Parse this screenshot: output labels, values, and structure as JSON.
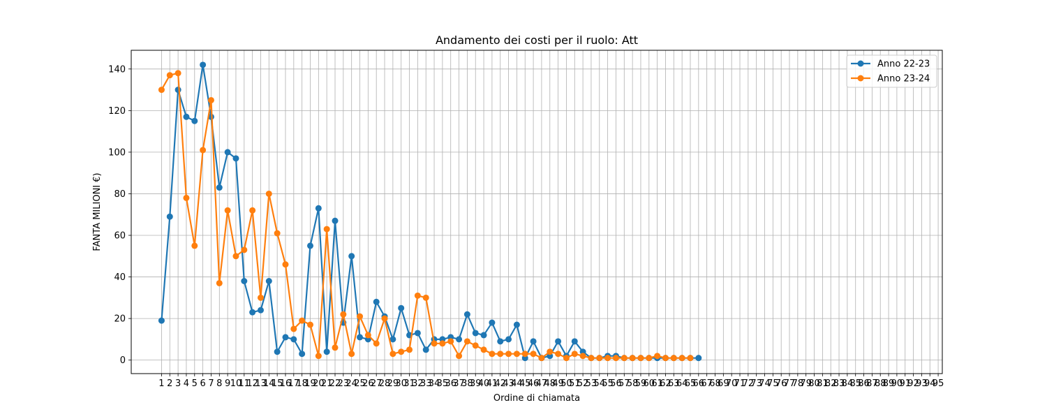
{
  "chart_data": {
    "type": "line",
    "title": "Andamento dei costi per il ruolo: Att",
    "xlabel": "Ordine di chiamata",
    "ylabel": "FANTA MILIONI €)",
    "xlim": [
      -2.67,
      95.5
    ],
    "ylim": [
      -6.5,
      149
    ],
    "xticks": [
      1,
      2,
      3,
      4,
      5,
      6,
      7,
      8,
      9,
      10,
      11,
      12,
      13,
      14,
      15,
      16,
      17,
      18,
      19,
      20,
      21,
      22,
      23,
      24,
      25,
      26,
      27,
      28,
      29,
      30,
      31,
      32,
      33,
      34,
      35,
      36,
      37,
      38,
      39,
      40,
      41,
      42,
      43,
      44,
      45,
      46,
      47,
      48,
      49,
      50,
      51,
      52,
      53,
      54,
      55,
      56,
      57,
      58,
      59,
      60,
      61,
      62,
      63,
      64,
      65,
      66,
      67,
      68,
      69,
      70,
      71,
      72,
      73,
      74,
      75,
      76,
      77,
      78,
      79,
      80,
      81,
      82,
      83,
      84,
      85,
      86,
      87,
      88,
      89,
      90,
      91,
      92,
      93,
      94,
      95
    ],
    "yticks": [
      0,
      20,
      40,
      60,
      80,
      100,
      120,
      140
    ],
    "grid": true,
    "legend_position": "top-right",
    "series": [
      {
        "name": "Anno 22-23",
        "color": "#1f77b4",
        "x": [
          1,
          2,
          3,
          4,
          5,
          6,
          7,
          8,
          9,
          10,
          11,
          12,
          13,
          14,
          15,
          16,
          17,
          18,
          19,
          20,
          21,
          22,
          23,
          24,
          25,
          26,
          27,
          28,
          29,
          30,
          31,
          32,
          33,
          34,
          35,
          36,
          37,
          38,
          39,
          40,
          41,
          42,
          43,
          44,
          45,
          46,
          47,
          48,
          49,
          50,
          51,
          52,
          53,
          54,
          55,
          56,
          57,
          58,
          59,
          60,
          61,
          62,
          63,
          64,
          65,
          66
        ],
        "values": [
          19,
          69,
          130,
          117,
          115,
          142,
          117,
          83,
          100,
          97,
          38,
          23,
          24,
          38,
          4,
          11,
          10,
          3,
          55,
          73,
          4,
          67,
          18,
          50,
          11,
          10,
          28,
          21,
          10,
          25,
          12,
          13,
          5,
          10,
          10,
          11,
          10,
          22,
          13,
          12,
          18,
          9,
          10,
          17,
          1,
          9,
          1,
          2,
          9,
          2,
          9,
          4,
          1,
          1,
          2,
          2,
          1,
          1,
          1,
          1,
          1,
          1,
          1,
          1,
          1,
          1
        ]
      },
      {
        "name": "Anno 23-24",
        "color": "#ff7f0e",
        "x": [
          1,
          2,
          3,
          4,
          5,
          6,
          7,
          8,
          9,
          10,
          11,
          12,
          13,
          14,
          15,
          16,
          17,
          18,
          19,
          20,
          21,
          22,
          23,
          24,
          25,
          26,
          27,
          28,
          29,
          30,
          31,
          32,
          33,
          34,
          35,
          36,
          37,
          38,
          39,
          40,
          41,
          42,
          43,
          44,
          45,
          46,
          47,
          48,
          49,
          50,
          51,
          52,
          53,
          54,
          55,
          56,
          57,
          58,
          59,
          60,
          61,
          62,
          63,
          64,
          65
        ],
        "values": [
          130,
          137,
          138,
          78,
          55,
          101,
          125,
          37,
          72,
          50,
          53,
          72,
          30,
          80,
          61,
          46,
          15,
          19,
          17,
          2,
          63,
          6,
          22,
          3,
          21,
          12,
          8,
          20,
          3,
          4,
          5,
          31,
          30,
          8,
          8,
          9,
          2,
          9,
          7,
          5,
          3,
          3,
          3,
          3,
          3,
          3,
          1,
          4,
          3,
          1,
          3,
          2,
          1,
          1,
          1,
          1,
          1,
          1,
          1,
          1,
          2,
          1,
          1,
          1,
          1
        ]
      }
    ]
  }
}
